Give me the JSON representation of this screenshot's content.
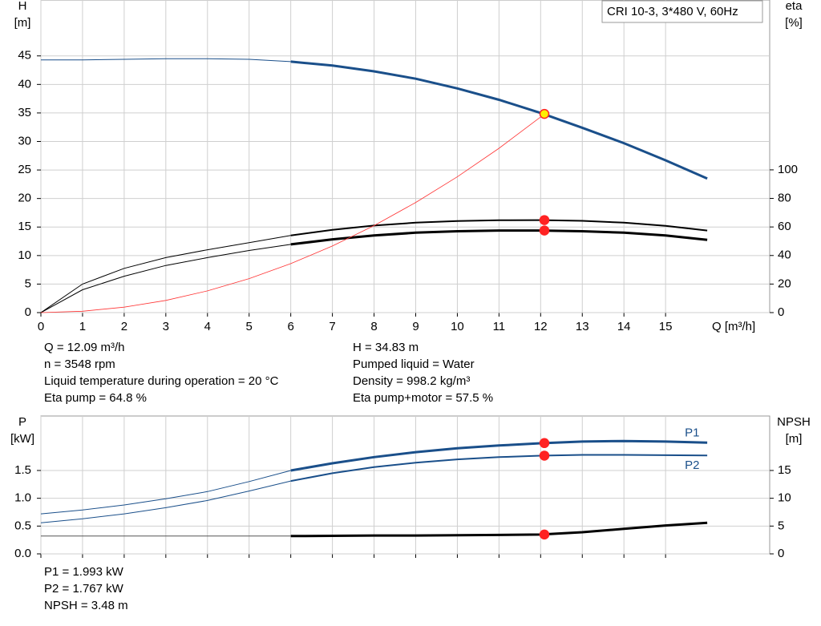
{
  "chart_data": [
    {
      "type": "line",
      "title": "CRI 10-3, 3*480 V, 60Hz",
      "ylabel": "H",
      "ylabel_unit": "[m]",
      "y2label": "eta",
      "y2label_unit": "[%]",
      "xlabel": "Q [m³/h]",
      "xlim": [
        0,
        17.5
      ],
      "xticks": [
        0,
        1,
        2,
        3,
        4,
        5,
        6,
        7,
        8,
        9,
        10,
        11,
        12,
        13,
        14,
        15
      ],
      "ylim": [
        0,
        54.8
      ],
      "yticks": [
        0,
        5,
        10,
        15,
        20,
        25,
        30,
        35,
        40,
        45
      ],
      "y2lim": [
        0,
        219
      ],
      "y2ticks": [
        0,
        20,
        40,
        60,
        80,
        100
      ],
      "grid": true,
      "show_xtick_labels": true,
      "series": [
        {
          "color": "#1a4f8a",
          "line_width": 1,
          "x": [
            0,
            1,
            2,
            3,
            4,
            5,
            6
          ],
          "values": [
            44.3,
            44.3,
            44.4,
            44.5,
            44.5,
            44.4,
            44.0
          ]
        },
        {
          "color": "#1a4f8a",
          "line_width": 3,
          "x": [
            6,
            7,
            8,
            9,
            10,
            11,
            12,
            13,
            14,
            15,
            16
          ],
          "values": [
            44.0,
            43.3,
            42.3,
            41.0,
            39.3,
            37.3,
            35.0,
            32.4,
            29.7,
            26.7,
            23.5
          ]
        },
        {
          "color": "#000000",
          "line_width": 1,
          "axis": "y2",
          "x": [
            0,
            1,
            2,
            3,
            4,
            5,
            6
          ],
          "values": [
            0,
            20,
            31,
            38.5,
            44,
            49,
            54
          ]
        },
        {
          "color": "#000000",
          "line_width": 2,
          "axis": "y2",
          "x": [
            6,
            7,
            8,
            9,
            10,
            11,
            12,
            13,
            14,
            15,
            16
          ],
          "values": [
            54,
            58,
            61,
            63,
            64.2,
            64.7,
            64.8,
            64.3,
            63,
            60.8,
            57.5
          ]
        },
        {
          "color": "#000000",
          "line_width": 1,
          "axis": "y2",
          "x": [
            0,
            1,
            2,
            3,
            4,
            5,
            6
          ],
          "values": [
            0,
            16,
            25.5,
            33,
            38.5,
            43.5,
            47.8
          ]
        },
        {
          "color": "#000000",
          "line_width": 3,
          "axis": "y2",
          "x": [
            6,
            7,
            8,
            9,
            10,
            11,
            12,
            13,
            14,
            15,
            16
          ],
          "values": [
            47.8,
            51.3,
            54,
            56,
            57,
            57.5,
            57.5,
            57,
            56,
            54,
            51
          ]
        },
        {
          "color": "#ff3333",
          "line_width": 0.8,
          "x": [
            0,
            1,
            2,
            3,
            4,
            5,
            6,
            7,
            8,
            9,
            10,
            11,
            12,
            12.09
          ],
          "values": [
            0,
            0.24,
            0.95,
            2.14,
            3.81,
            5.96,
            8.58,
            11.68,
            15.25,
            19.3,
            23.8,
            28.8,
            34.3,
            34.83
          ]
        }
      ],
      "points": [
        {
          "x": 12.09,
          "value": 34.83,
          "color": "#ffee00"
        },
        {
          "x": 12.09,
          "value": 64.8,
          "color": "#ff2222",
          "axis": "y2"
        },
        {
          "x": 12.09,
          "value": 57.5,
          "color": "#ff2222",
          "axis": "y2"
        }
      ],
      "notes": [
        [
          "Q = 12.09 m³/h",
          "n = 3548 rpm",
          "Liquid temperature during operation = 20 °C",
          "Eta pump = 64.8 %"
        ],
        [
          "H = 34.83 m",
          "Pumped liquid = Water",
          "Density = 998.2 kg/m³",
          "Eta pump+motor = 57.5 %"
        ]
      ]
    },
    {
      "type": "line",
      "ylabel": "P",
      "ylabel_unit": "[kW]",
      "y2label": "NPSH",
      "y2label_unit": "[m]",
      "xlim": [
        0,
        17.5
      ],
      "xticks": [
        0,
        1,
        2,
        3,
        4,
        5,
        6,
        7,
        8,
        9,
        10,
        11,
        12,
        13,
        14,
        15
      ],
      "ylim": [
        0,
        2.48
      ],
      "yticks": [
        {
          "value": 0,
          "label": "0.0"
        },
        0.5,
        {
          "value": 1,
          "label": "1.0"
        },
        1.5
      ],
      "y2lim": [
        0,
        24.8
      ],
      "y2ticks": [
        0,
        5,
        10,
        15
      ],
      "grid": true,
      "show_xtick_labels": false,
      "series": [
        {
          "color": "#1a4f8a",
          "line_width": 1,
          "x": [
            0,
            1,
            2,
            3,
            4,
            5,
            6
          ],
          "values": [
            0.72,
            0.79,
            0.88,
            0.99,
            1.12,
            1.3,
            1.5
          ]
        },
        {
          "name": "P1",
          "color": "#1a4f8a",
          "line_width": 3,
          "x": [
            6,
            7,
            8,
            9,
            10,
            11,
            12,
            13,
            14,
            15,
            16
          ],
          "values": [
            1.5,
            1.63,
            1.74,
            1.83,
            1.9,
            1.95,
            1.99,
            2.02,
            2.03,
            2.02,
            2.0
          ]
        },
        {
          "color": "#1a4f8a",
          "line_width": 1,
          "x": [
            0,
            1,
            2,
            3,
            4,
            5,
            6
          ],
          "values": [
            0.56,
            0.63,
            0.72,
            0.83,
            0.96,
            1.13,
            1.31
          ]
        },
        {
          "name": "P2",
          "color": "#1a4f8a",
          "line_width": 2,
          "x": [
            6,
            7,
            8,
            9,
            10,
            11,
            12,
            13,
            14,
            15,
            16
          ],
          "values": [
            1.31,
            1.45,
            1.56,
            1.64,
            1.7,
            1.74,
            1.767,
            1.78,
            1.78,
            1.775,
            1.77
          ]
        },
        {
          "color": "#555555",
          "line_width": 1,
          "axis": "y2",
          "x": [
            0,
            1,
            2,
            3,
            4,
            5,
            6
          ],
          "values": [
            3.2,
            3.2,
            3.2,
            3.2,
            3.2,
            3.2,
            3.2
          ]
        },
        {
          "color": "#000000",
          "line_width": 3,
          "axis": "y2",
          "x": [
            6,
            7,
            8,
            9,
            10,
            11,
            12,
            13,
            14,
            15,
            16
          ],
          "values": [
            3.2,
            3.25,
            3.3,
            3.3,
            3.35,
            3.4,
            3.48,
            3.9,
            4.5,
            5.1,
            5.6
          ]
        }
      ],
      "points": [
        {
          "x": 12.09,
          "value": 1.993,
          "color": "#ff2222"
        },
        {
          "x": 12.09,
          "value": 1.767,
          "color": "#ff2222"
        },
        {
          "x": 12.09,
          "value": 3.48,
          "color": "#ff2222",
          "axis": "y2"
        }
      ],
      "notes": [
        [
          "P1 = 1.993 kW",
          "P2 = 1.767 kW",
          "NPSH = 3.48 m"
        ]
      ]
    }
  ]
}
